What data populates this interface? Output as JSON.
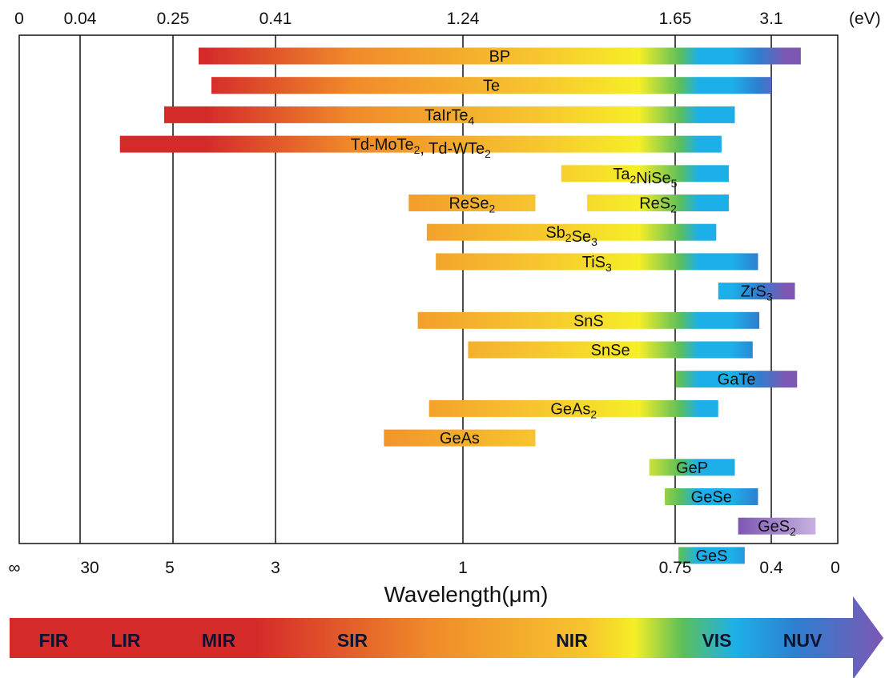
{
  "chart_data": {
    "type": "bar",
    "orientation": "horizontal",
    "title": "",
    "xlabel": "Wavelength(μm)",
    "energy_unit": "(eV)",
    "grid": true,
    "top_ticks": [
      "0",
      "0.04",
      "0.25",
      "0.41",
      "1.24",
      "1.65",
      "3.1"
    ],
    "bottom_ticks": [
      "∞",
      "30",
      "5",
      "3",
      "1",
      "0.75",
      "0.4",
      "0"
    ],
    "materials": [
      {
        "label": [
          {
            "t": "BP"
          }
        ],
        "segments": [
          [
            0.29,
            3.5
          ]
        ]
      },
      {
        "label": [
          {
            "t": "Te"
          }
        ],
        "segments": [
          [
            0.31,
            3.1
          ]
        ]
      },
      {
        "label": [
          {
            "t": "TaIrTe"
          },
          {
            "t": "4",
            "sub": true
          }
        ],
        "segments": [
          [
            0.23,
            2.55
          ]
        ]
      },
      {
        "label": [
          {
            "t": "Td-MoTe"
          },
          {
            "t": "2",
            "sub": true
          },
          {
            "t": ", Td-WTe"
          },
          {
            "t": "2",
            "sub": true
          }
        ],
        "segments": [
          [
            0.13,
            2.35
          ]
        ]
      },
      {
        "label": [
          {
            "t": "Ta"
          },
          {
            "t": "2",
            "sub": true
          },
          {
            "t": "NiSe"
          },
          {
            "t": "5",
            "sub": true
          }
        ],
        "segments": [
          [
            1.43,
            2.46
          ]
        ]
      },
      {
        "label": [
          {
            "t": "ReSe"
          },
          {
            "t": "2",
            "sub": true
          }
        ],
        "label_segment": 0,
        "segments": [
          [
            1.0,
            1.38
          ],
          [
            1.48,
            2.46
          ]
        ]
      },
      {
        "label": [
          {
            "t": "Sb"
          },
          {
            "t": "2",
            "sub": true
          },
          {
            "t": "Se"
          },
          {
            "t": "3",
            "sub": true
          }
        ],
        "segments": [
          [
            1.08,
            2.27
          ]
        ]
      },
      {
        "label": [
          {
            "t": "TiS"
          },
          {
            "t": "3",
            "sub": true
          }
        ],
        "segments": [
          [
            1.12,
            2.9
          ]
        ]
      },
      {
        "label": [
          {
            "t": "ZrS"
          },
          {
            "t": "3",
            "sub": true
          }
        ],
        "segments": [
          [
            2.3,
            3.42
          ]
        ]
      },
      {
        "label": [
          {
            "t": "SnS"
          }
        ],
        "segments": [
          [
            1.04,
            2.92
          ]
        ]
      },
      {
        "label": [
          {
            "t": "SnSe"
          }
        ],
        "segments": [
          [
            1.25,
            2.82
          ]
        ]
      },
      {
        "label": [
          {
            "t": "GaTe"
          }
        ],
        "segments": [
          [
            1.66,
            3.45
          ]
        ]
      },
      {
        "label": [
          {
            "t": "GeAs"
          },
          {
            "t": "2",
            "sub": true
          }
        ],
        "segments": [
          [
            1.09,
            2.3
          ]
        ]
      },
      {
        "label": [
          {
            "t": "GeAs"
          }
        ],
        "segments": [
          [
            0.89,
            1.38
          ]
        ]
      },
      {
        "label": [
          {
            "t": "GeP"
          }
        ],
        "segments": [
          [
            1.6,
            2.55
          ]
        ]
      },
      {
        "label": [
          {
            "t": "GeSe"
          }
        ],
        "segments": [
          [
            1.63,
            2.9
          ]
        ]
      },
      {
        "label": [
          {
            "t": "GeS"
          },
          {
            "t": "2",
            "sub": true
          }
        ],
        "segments": [
          [
            2.6,
            3.7
          ]
        ]
      },
      {
        "label": [
          {
            "t": "GeS"
          }
        ],
        "segments": [
          [
            1.7,
            2.7
          ]
        ]
      }
    ],
    "extra_labels": [
      {
        "label": [
          {
            "t": "ReS"
          },
          {
            "t": "2",
            "sub": true
          }
        ],
        "row": 5,
        "segment": 1
      }
    ]
  },
  "spectrum": {
    "bands": [
      "FIR",
      "LIR",
      "MIR",
      "SIR",
      "NIR",
      "VIS",
      "NUV"
    ],
    "colors": {
      "red": "#d42a2a",
      "orange": "#f08a2a",
      "yellow": "#f7c52f",
      "bright_yellow": "#f6ee27",
      "green": "#5cbf5a",
      "cyan": "#1db0e8",
      "blue": "#2d7fd0",
      "purple": "#7e57b3",
      "lavender": "#c8b2e0"
    }
  }
}
